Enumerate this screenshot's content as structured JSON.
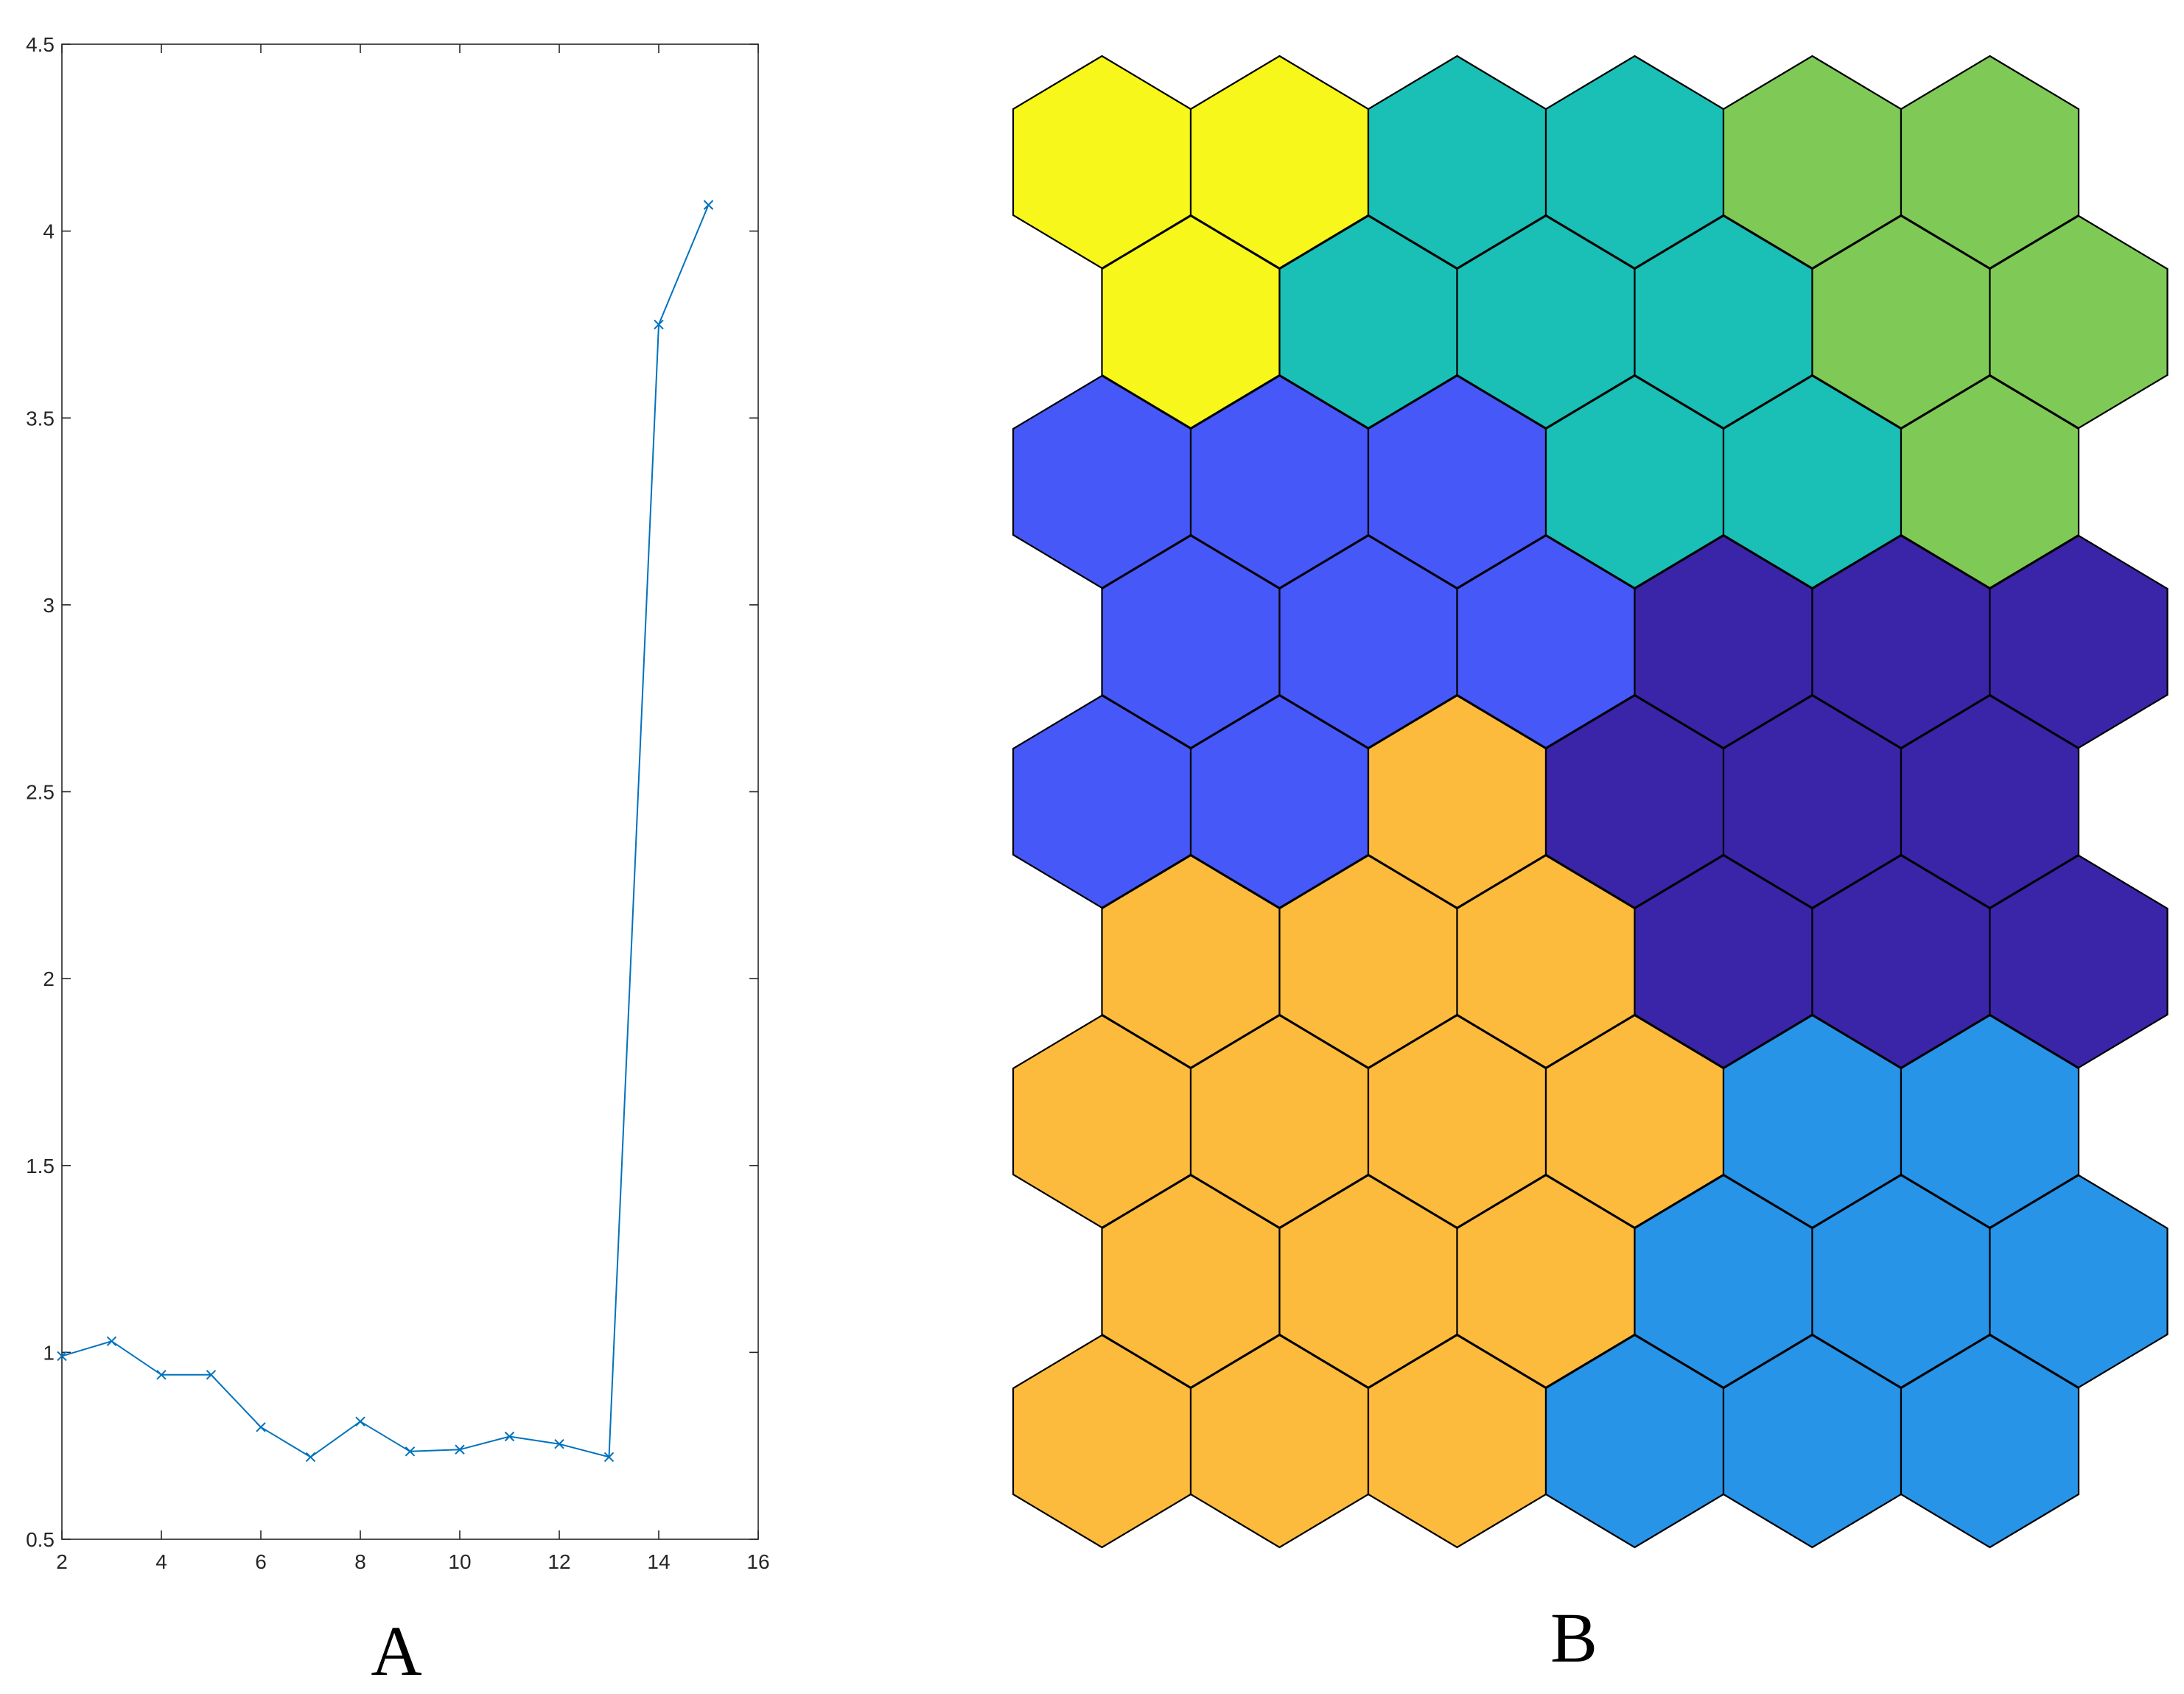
{
  "chart_data": [
    {
      "type": "line",
      "panel_label": "A",
      "x": [
        2,
        3,
        4,
        5,
        6,
        7,
        8,
        9,
        10,
        11,
        12,
        13,
        14,
        15
      ],
      "series": [
        {
          "values": [
            0.99,
            1.03,
            0.94,
            0.94,
            0.8,
            0.72,
            0.815,
            0.735,
            0.74,
            0.775,
            0.755,
            0.72,
            3.75,
            4.07
          ],
          "color": "#0072BD",
          "marker": "x"
        }
      ],
      "xlim": [
        2,
        16
      ],
      "ylim": [
        0.5,
        4.5
      ],
      "xticks": [
        "2",
        "4",
        "6",
        "8",
        "10",
        "12",
        "14",
        "16"
      ],
      "yticks": [
        "0.5",
        "1",
        "1.5",
        "2",
        "2.5",
        "3",
        "3.5",
        "4",
        "4.5"
      ],
      "title": "",
      "xlabel": "",
      "ylabel": "",
      "grid": false
    },
    {
      "type": "heatmap",
      "panel_label": "B",
      "layout": "hexagonal",
      "rows": 9,
      "cols": 6,
      "palette": {
        "yellow": "#F8F71B",
        "teal": "#1ABFB5",
        "green": "#7FCA57",
        "blue": "#4658F7",
        "navy": "#3A25A9",
        "orange": "#FDBB3D",
        "sky": "#2794E8"
      },
      "cells": [
        [
          "yellow",
          "yellow",
          "teal",
          "teal",
          "green",
          "green"
        ],
        [
          "yellow",
          "teal",
          "teal",
          "teal",
          "green",
          "green"
        ],
        [
          "blue",
          "blue",
          "blue",
          "teal",
          "teal",
          "green"
        ],
        [
          "blue",
          "blue",
          "blue",
          "navy",
          "navy",
          "navy"
        ],
        [
          "blue",
          "blue",
          "orange",
          "navy",
          "navy",
          "navy"
        ],
        [
          "orange",
          "orange",
          "orange",
          "navy",
          "navy",
          "navy"
        ],
        [
          "orange",
          "orange",
          "orange",
          "orange",
          "sky",
          "sky"
        ],
        [
          "orange",
          "orange",
          "orange",
          "sky",
          "sky",
          "sky"
        ],
        [
          "orange",
          "orange",
          "orange",
          "sky",
          "sky",
          "sky"
        ]
      ]
    }
  ]
}
